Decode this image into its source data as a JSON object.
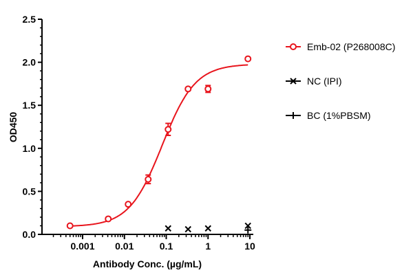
{
  "chart_data": {
    "type": "scatter",
    "title": "",
    "xlabel": "Antibody Conc. (µg/mL)",
    "ylabel": "OD450",
    "xscale": "log",
    "xlim": [
      0.0003,
      12
    ],
    "ylim": [
      0,
      2.5
    ],
    "xticks": [
      0.001,
      0.01,
      0.1,
      1,
      10
    ],
    "xtick_labels": [
      "0.001",
      "0.01",
      "0.1",
      "1",
      "10"
    ],
    "yticks": [
      0,
      0.5,
      1,
      1.5,
      2,
      2.5
    ],
    "ytick_labels": [
      "0.0",
      "0.5",
      "1.0",
      "1.5",
      "2.0",
      "2.5"
    ],
    "grid": false,
    "legend_position": "right",
    "series": [
      {
        "name": "Emb-02 (P268008C)",
        "color": "#e8141c",
        "marker": "circle",
        "x": [
          0.0005,
          0.0041,
          0.0123,
          0.037,
          0.111,
          0.333,
          1,
          9
        ],
        "y": [
          0.1,
          0.18,
          0.35,
          0.64,
          1.22,
          1.69,
          1.69,
          2.04
        ],
        "err": [
          0,
          0,
          0,
          0.05,
          0.07,
          0,
          0.04,
          0
        ],
        "fit": {
          "model": "4PL",
          "bottom": 0.09,
          "top": 1.98,
          "ec50": 0.08,
          "hill": 1.1
        }
      },
      {
        "name": "NC (IPI)",
        "color": "#000000",
        "marker": "x",
        "x": [
          0.111,
          0.333,
          1,
          9
        ],
        "y": [
          0.07,
          0.06,
          0.07,
          0.1
        ]
      },
      {
        "name": "BC (1%PBSM)",
        "color": "#000000",
        "marker": "plus",
        "x": [
          9
        ],
        "y": [
          0.05
        ]
      }
    ]
  }
}
